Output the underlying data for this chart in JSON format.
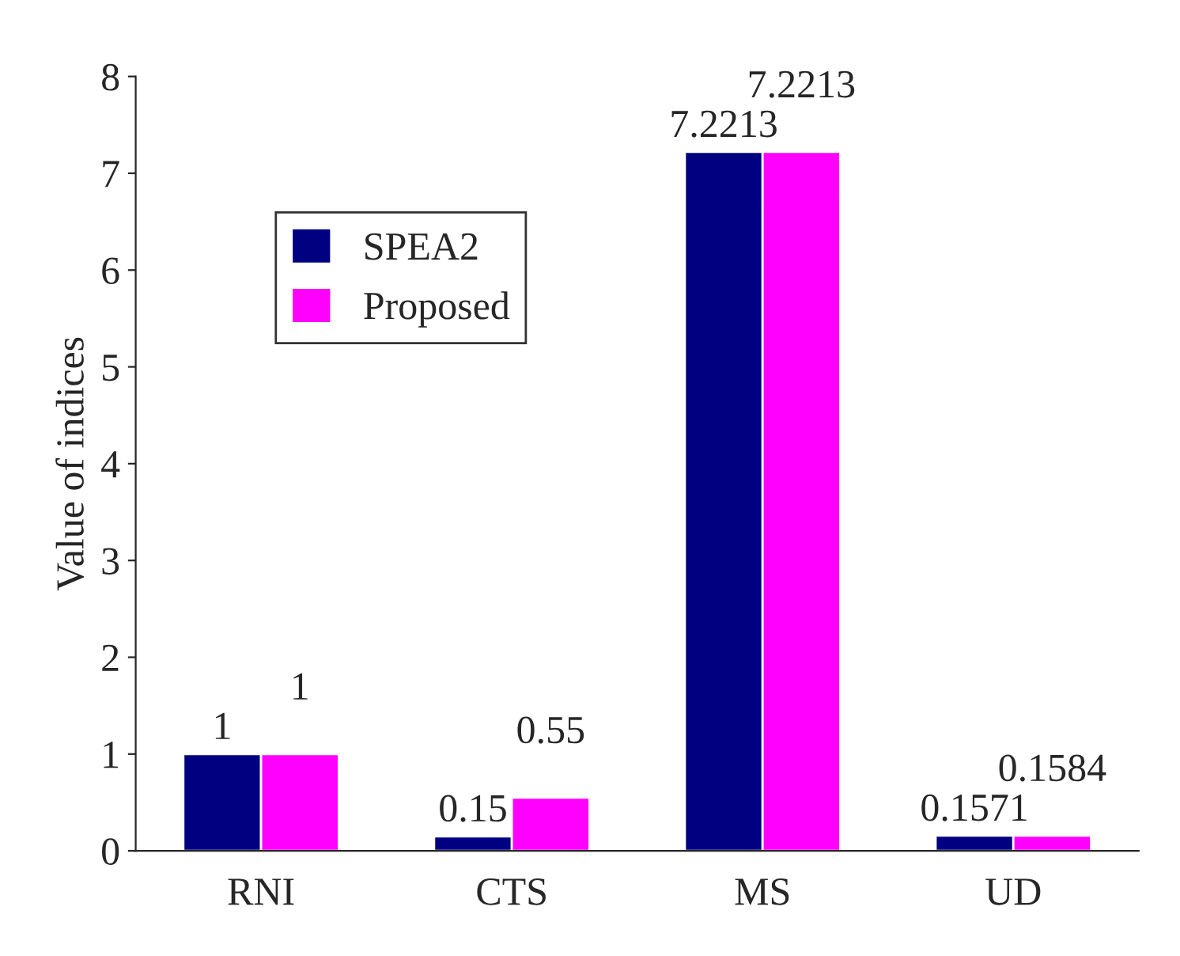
{
  "chart_data": {
    "type": "bar",
    "ylabel": "Value of indices",
    "categories": [
      "RNI",
      "CTS",
      "MS",
      "UD"
    ],
    "series": [
      {
        "name": "SPEA2",
        "color": "#000080",
        "values": [
          1,
          0.15,
          7.2213,
          0.1571
        ]
      },
      {
        "name": "Proposed",
        "color": "#ff00ff",
        "values": [
          1,
          0.55,
          7.2213,
          0.1584
        ]
      }
    ],
    "ylim": [
      0,
      8
    ],
    "yticks": [
      0,
      1,
      2,
      3,
      4,
      5,
      6,
      7,
      8
    ],
    "data_labels": true,
    "legend": "top left",
    "grid": false
  }
}
